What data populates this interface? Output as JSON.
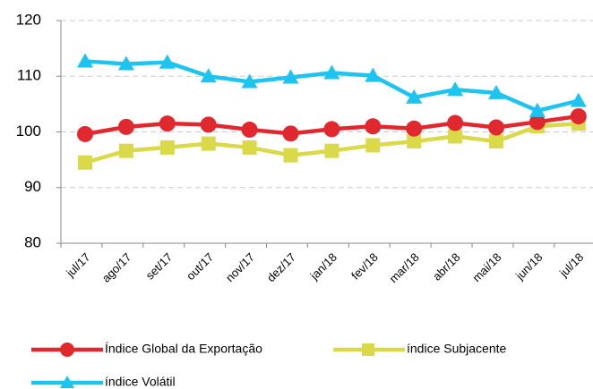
{
  "chart_data": {
    "type": "line",
    "categories": [
      "jul/17",
      "ago/17",
      "set/17",
      "out/17",
      "nov/17",
      "dez/17",
      "jan/18",
      "fev/18",
      "mar/18",
      "abr/18",
      "mai/18",
      "jun/18",
      "jul/18"
    ],
    "series": [
      {
        "name": "Índice Global da Exportação",
        "color": "#e0282e",
        "marker": "circle",
        "values": [
          99.6,
          100.9,
          101.5,
          101.3,
          100.4,
          99.7,
          100.5,
          101.0,
          100.6,
          101.6,
          100.8,
          101.8,
          102.8
        ]
      },
      {
        "name": "índice Subjacente",
        "color": "#d9d94a",
        "marker": "square",
        "values": [
          94.5,
          96.6,
          97.2,
          97.9,
          97.2,
          95.8,
          96.6,
          97.6,
          98.3,
          99.2,
          98.3,
          101.0,
          101.5
        ]
      },
      {
        "name": "índice Volátil",
        "color": "#1ec4f0",
        "marker": "triangle",
        "values": [
          112.7,
          112.2,
          112.5,
          110.0,
          109.0,
          109.8,
          110.6,
          110.1,
          106.2,
          107.6,
          107.0,
          103.8,
          105.6
        ]
      }
    ],
    "ylim": [
      80,
      120
    ],
    "yticks": [
      80,
      90,
      100,
      110,
      120
    ],
    "grid": true
  }
}
